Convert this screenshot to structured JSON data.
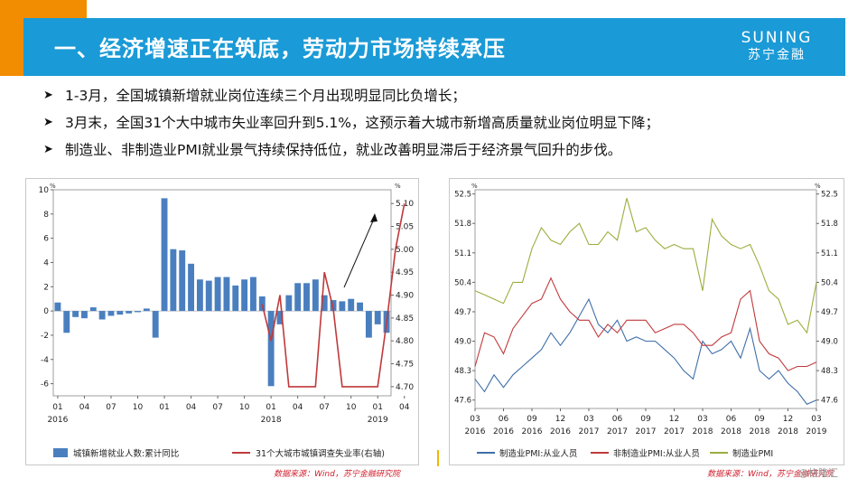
{
  "header": {
    "title": "一、经济增速正在筑底，劳动力市场持续承压",
    "logo_en": "SUNING",
    "logo_cn": "苏宁金融"
  },
  "bullets": [
    "1-3月，全国城镇新增就业岗位连续三个月出现明显同比负增长；",
    "3月末，全国31个大中城市失业率回升到5.1%，这预示着大城市新增高质量就业岗位明显下降；",
    "制造业、非制造业PMI就业景气持续保持低位，就业改善明显滞后于经济景气回升的步伐。"
  ],
  "sources": {
    "left": "数据来源：Wind，苏宁金融研究院",
    "right": "数据来源：Wind，苏宁金融研究院"
  },
  "watermark": "@格隆汇",
  "colors": {
    "header": "#1a9ad6",
    "accent": "#f28c00",
    "bar": "#4a7fbf",
    "red_line": "#c0393b",
    "blue_line": "#3f6fa8",
    "green_line": "#9aae3e",
    "source_text": "#d0202e"
  },
  "chart_data": [
    {
      "type": "bar+line",
      "y_unit_left": "%",
      "y_unit_right": "%",
      "ylim_left": [
        -7,
        10
      ],
      "yticks_left": [
        10,
        8,
        6,
        4,
        2,
        0,
        -2,
        -4,
        -6
      ],
      "ylim_right": [
        4.68,
        5.13
      ],
      "yticks_right": [
        "5.10",
        "5.05",
        "5.00",
        "4.95",
        "4.90",
        "4.85",
        "4.80",
        "4.75",
        "4.70"
      ],
      "x_tick_months": [
        "01",
        "04",
        "07",
        "10",
        "01",
        "04",
        "07",
        "10",
        "01",
        "04",
        "07",
        "10",
        "01",
        "04"
      ],
      "x_tick_years": [
        "2016",
        "",
        "",
        "",
        "",
        "",
        "",
        "",
        "2018",
        "",
        "",
        "",
        "2019",
        ""
      ],
      "x_tick_index": [
        0,
        3,
        6,
        9,
        12,
        15,
        18,
        21,
        24,
        27,
        30,
        33,
        36,
        39
      ],
      "bar_series": {
        "name": "城镇新增就业人数:累计同比",
        "values": [
          0.7,
          -1.8,
          -0.5,
          -0.6,
          0.3,
          -0.7,
          -0.4,
          -0.3,
          -0.2,
          -0.1,
          0.2,
          -2.2,
          9.3,
          5.1,
          5.0,
          3.9,
          2.6,
          2.5,
          2.8,
          2.8,
          2.1,
          2.6,
          2.8,
          1.2,
          -6.2,
          -1.1,
          1.3,
          2.3,
          2.3,
          2.6,
          1.3,
          0.9,
          0.8,
          1.0,
          0.7,
          -2.2,
          -1.1,
          -1.8
        ]
      },
      "line_series": {
        "name": "31个大城市城镇调查失业率(右轴)",
        "start_index": 23,
        "values": [
          4.88,
          4.8,
          4.9,
          4.7,
          4.7,
          4.7,
          4.7,
          4.95,
          4.87,
          4.7,
          4.7,
          4.7,
          4.7,
          4.7,
          4.84,
          5.0,
          5.1
        ]
      }
    },
    {
      "type": "line",
      "y_unit_left": "%",
      "y_unit_right": "%",
      "ylim": [
        47.4,
        52.6
      ],
      "yticks": [
        "52.5",
        "51.8",
        "51.1",
        "50.4",
        "49.7",
        "49.0",
        "48.3",
        "47.6"
      ],
      "x_tick_months": [
        "03",
        "06",
        "09",
        "12",
        "03",
        "06",
        "09",
        "12",
        "03",
        "06",
        "09",
        "12",
        "03"
      ],
      "x_tick_years": [
        "2016",
        "2016",
        "2016",
        "2016",
        "2017",
        "2017",
        "2017",
        "2017",
        "2018",
        "2018",
        "2018",
        "2018",
        "2019"
      ],
      "series": [
        {
          "name": "制造业PMI:从业人员",
          "color": "#3f6fa8",
          "values": [
            48.1,
            47.8,
            48.2,
            47.9,
            48.2,
            48.4,
            48.6,
            48.8,
            49.2,
            48.9,
            49.2,
            49.6,
            50.0,
            49.4,
            49.2,
            49.5,
            49.0,
            49.1,
            49.0,
            49.0,
            48.8,
            48.6,
            48.3,
            48.1,
            49.0,
            48.7,
            48.8,
            49.0,
            48.6,
            49.3,
            48.3,
            48.1,
            48.3,
            48.0,
            47.8,
            47.5,
            47.6
          ]
        },
        {
          "name": "非制造业PMI:从业人员",
          "color": "#c0393b",
          "values": [
            48.4,
            49.2,
            49.1,
            48.7,
            49.3,
            49.6,
            49.9,
            50.0,
            50.5,
            50.0,
            49.7,
            49.5,
            49.5,
            49.1,
            49.4,
            49.2,
            49.5,
            49.5,
            49.5,
            49.2,
            49.3,
            49.4,
            49.4,
            49.2,
            48.9,
            48.9,
            49.1,
            49.2,
            50.0,
            50.2,
            49.0,
            48.7,
            48.6,
            48.3,
            48.4,
            48.4,
            48.5
          ]
        },
        {
          "name": "制造业PMI",
          "color": "#9aae3e",
          "values": [
            50.2,
            50.1,
            50.0,
            49.9,
            50.4,
            50.4,
            51.2,
            51.7,
            51.4,
            51.3,
            51.6,
            51.8,
            51.3,
            51.3,
            51.6,
            51.4,
            52.4,
            51.6,
            51.7,
            51.4,
            51.2,
            51.3,
            51.2,
            51.2,
            50.2,
            51.9,
            51.5,
            51.3,
            51.2,
            51.3,
            50.8,
            50.2,
            50.0,
            49.4,
            49.5,
            49.2,
            50.4
          ]
        }
      ]
    }
  ]
}
